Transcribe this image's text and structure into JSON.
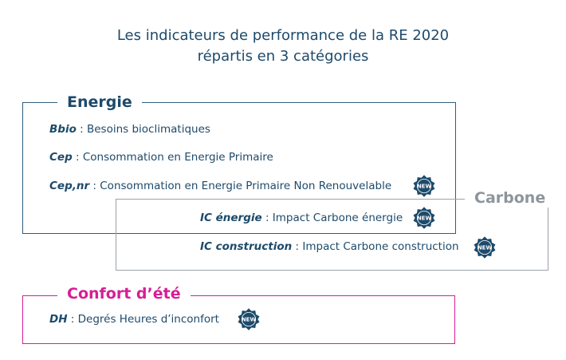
{
  "title": {
    "line1": "Les indicateurs de performance de la RE 2020",
    "line2": "répartis en 3 catégories"
  },
  "categories": {
    "energie": {
      "label": "Energie",
      "color": "#1d4a6b",
      "items": [
        {
          "abbr": "Bbio",
          "text": " : Besoins bioclimatiques",
          "new": false
        },
        {
          "abbr": "Cep",
          "text": " : Consommation en Energie Primaire",
          "new": false
        },
        {
          "abbr": "Cep,nr",
          "text": " : Consommation en Energie Primaire Non Renouvelable",
          "new": true
        }
      ]
    },
    "carbone": {
      "label": "Carbone",
      "color": "#8d959b",
      "items": [
        {
          "abbr": "IC énergie",
          "text": " : Impact Carbone énergie",
          "new": true
        },
        {
          "abbr": "IC construction",
          "text": " : Impact Carbone construction",
          "new": true
        }
      ]
    },
    "confort": {
      "label": "Confort d’été",
      "color": "#d61e96",
      "items": [
        {
          "abbr": "DH",
          "text": " : Degrés Heures d’inconfort",
          "new": true
        }
      ]
    }
  },
  "badge": {
    "label": "NEW",
    "icon": "new-badge-icon",
    "color": "#1d4a6b"
  }
}
